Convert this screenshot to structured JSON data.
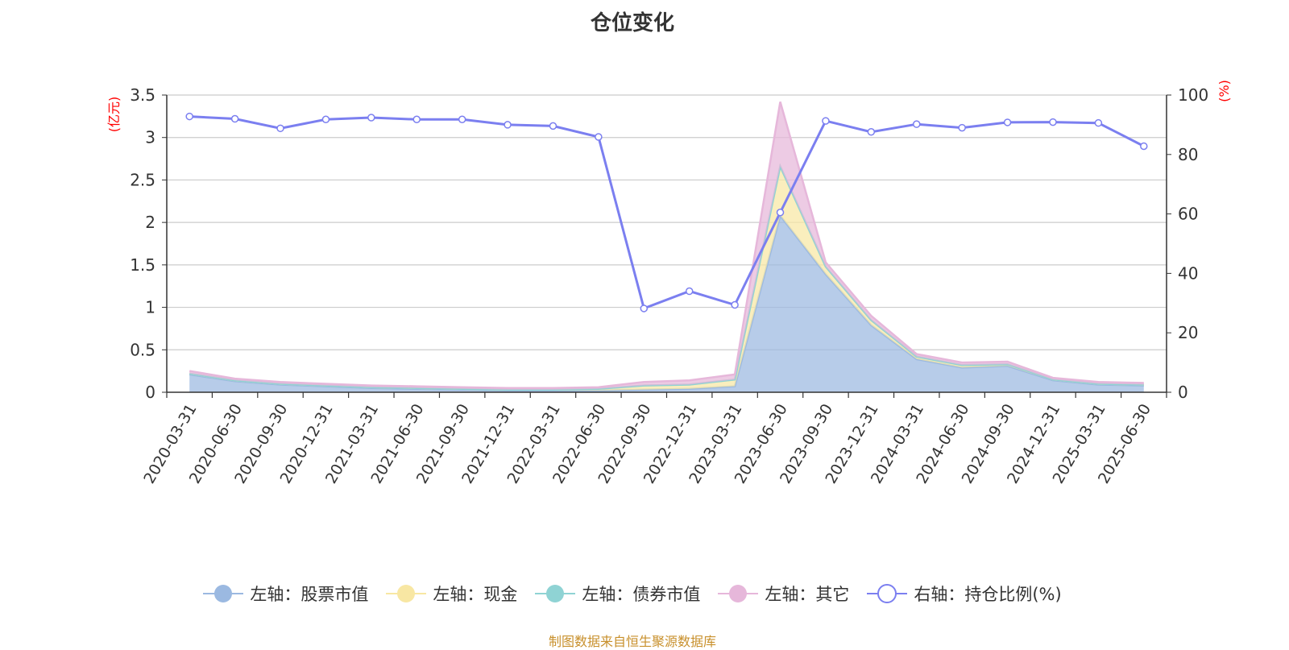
{
  "header": {
    "title": "仓位变化"
  },
  "footer": {
    "source": "制图数据来自恒生聚源数据库"
  },
  "colors": {
    "stock": "#9bb9e1",
    "cash": "#f8e7a3",
    "bond": "#8fd3d4",
    "other": "#e6b7da",
    "ratio": "#7b7ff0",
    "axis_unit": "#ff0000"
  },
  "chart_data": {
    "type": "area",
    "title": "仓位变化",
    "categories": [
      "2020-03-31",
      "2020-06-30",
      "2020-09-30",
      "2020-12-31",
      "2021-03-31",
      "2021-06-30",
      "2021-09-30",
      "2021-12-31",
      "2022-03-31",
      "2022-06-30",
      "2022-09-30",
      "2022-12-31",
      "2023-03-31",
      "2023-06-30",
      "2023-09-30",
      "2023-12-31",
      "2024-03-31",
      "2024-06-30",
      "2024-09-30",
      "2024-12-31",
      "2025-03-31",
      "2025-06-30"
    ],
    "left_axis": {
      "unit": "(亿元)",
      "ylim": [
        0,
        3.5
      ],
      "ticks": [
        "0",
        "0.5",
        "1",
        "1.5",
        "2",
        "2.5",
        "3",
        "3.5"
      ]
    },
    "right_axis": {
      "unit": "(%)",
      "ylim": [
        0,
        100
      ],
      "ticks": [
        "0",
        "20",
        "40",
        "60",
        "80",
        "100"
      ]
    },
    "grid": true,
    "legend_position": "bottom",
    "series": [
      {
        "name": "左轴：股票市值",
        "key": "stock",
        "axis": "left",
        "stacked": true,
        "values": [
          0.21,
          0.13,
          0.09,
          0.07,
          0.05,
          0.04,
          0.03,
          0.02,
          0.02,
          0.02,
          0.03,
          0.04,
          0.07,
          2.08,
          1.39,
          0.79,
          0.39,
          0.29,
          0.31,
          0.14,
          0.09,
          0.08
        ]
      },
      {
        "name": "左轴：现金",
        "key": "cash",
        "axis": "left",
        "stacked": true,
        "values": [
          0.01,
          0.01,
          0.01,
          0.01,
          0.01,
          0.01,
          0.01,
          0.01,
          0.01,
          0.02,
          0.05,
          0.05,
          0.08,
          0.58,
          0.09,
          0.06,
          0.03,
          0.03,
          0.02,
          0.01,
          0.01,
          0.01
        ]
      },
      {
        "name": "左轴：债券市值",
        "key": "bond",
        "axis": "left",
        "stacked": true,
        "values": [
          0,
          0,
          0,
          0,
          0,
          0,
          0,
          0,
          0,
          0,
          0,
          0,
          0,
          0,
          0,
          0,
          0,
          0,
          0,
          0,
          0,
          0
        ]
      },
      {
        "name": "左轴：其它",
        "key": "other",
        "axis": "left",
        "stacked": true,
        "values": [
          0.03,
          0.02,
          0.02,
          0.02,
          0.02,
          0.02,
          0.02,
          0.02,
          0.02,
          0.02,
          0.04,
          0.05,
          0.06,
          0.76,
          0.05,
          0.05,
          0.03,
          0.03,
          0.03,
          0.02,
          0.02,
          0.02
        ]
      },
      {
        "name": "右轴：持仓比例(%)",
        "key": "ratio",
        "axis": "right",
        "stacked": false,
        "values": [
          92.8,
          92.0,
          88.8,
          91.8,
          92.4,
          91.8,
          91.8,
          90.0,
          89.6,
          85.9,
          28.2,
          34.0,
          29.4,
          60.5,
          91.3,
          87.6,
          90.2,
          89.0,
          90.8,
          90.9,
          90.6,
          82.8
        ]
      }
    ]
  }
}
